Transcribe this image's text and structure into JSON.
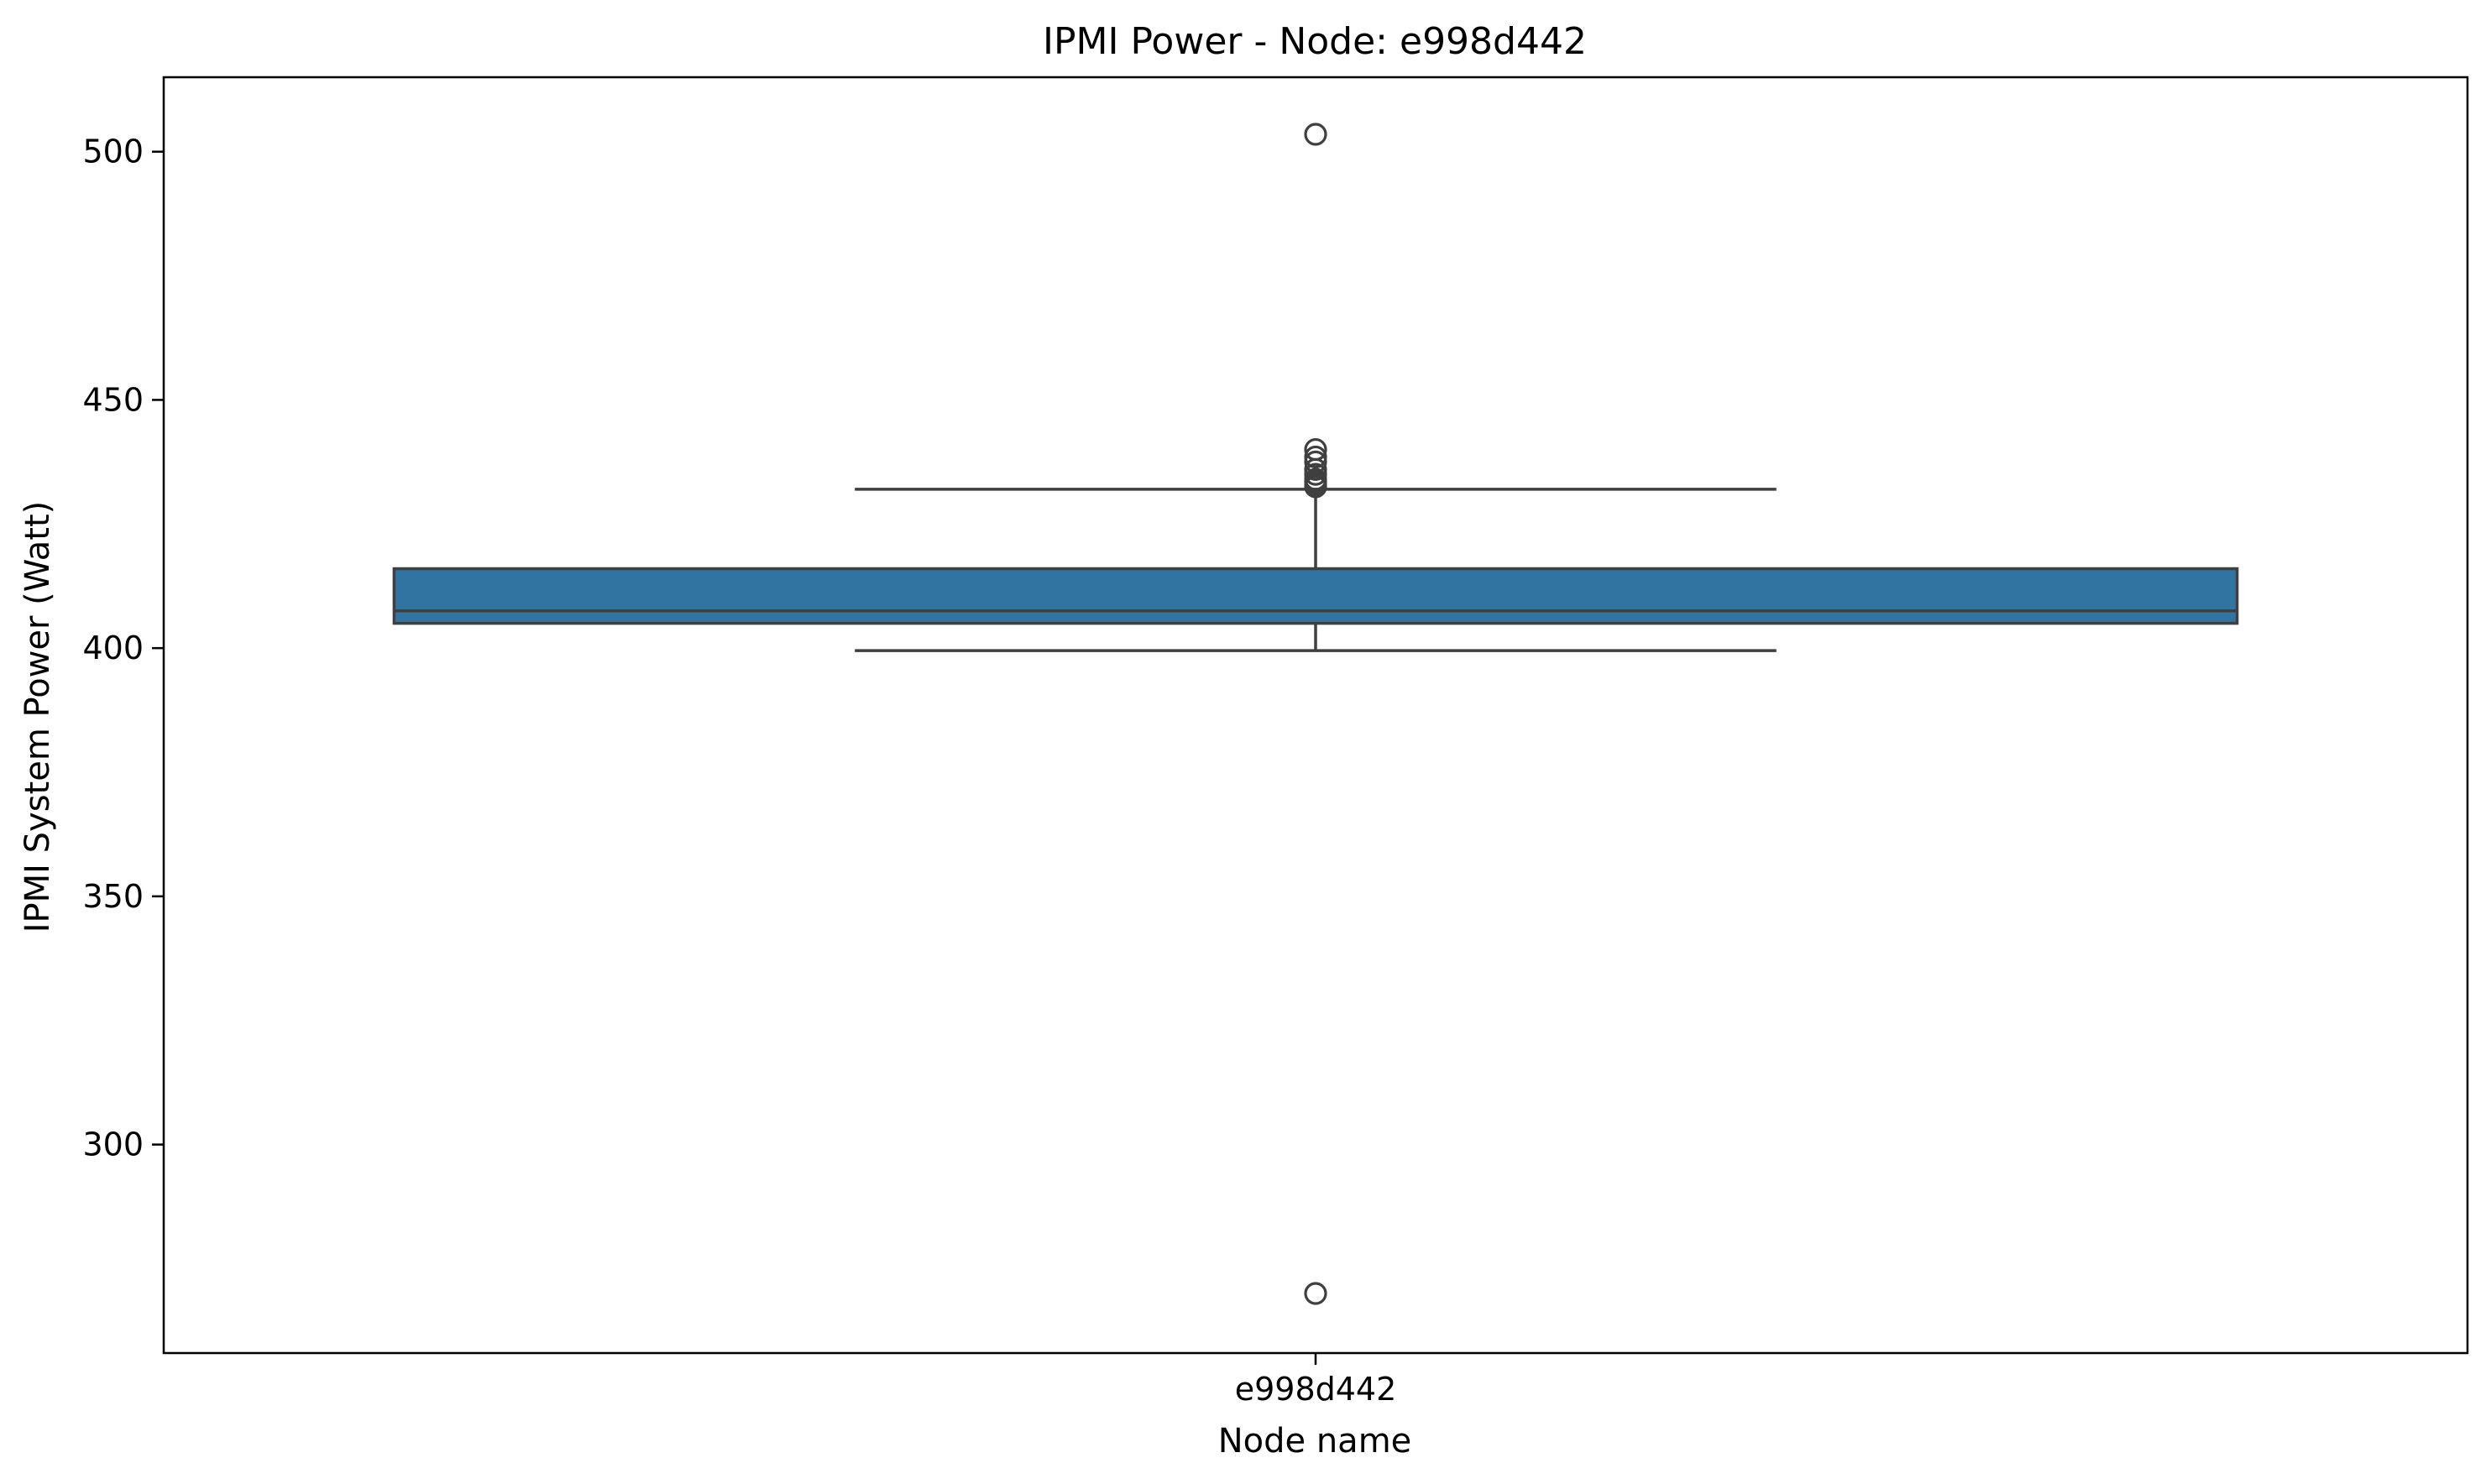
{
  "chart_data": {
    "type": "box",
    "title": "IPMI Power - Node: e998d442",
    "xlabel": "Node name",
    "ylabel": "IPMI System Power (Watt)",
    "ylim": [
      258,
      515
    ],
    "yticks": [
      300,
      350,
      400,
      450,
      500
    ],
    "categories": [
      "e998d442"
    ],
    "boxes": [
      {
        "category": "e998d442",
        "whisker_low": 399.5,
        "q1": 405,
        "median": 407.5,
        "q3": 416,
        "whisker_high": 432,
        "outliers": [
          270,
          432.5,
          433,
          433.5,
          434,
          435,
          436,
          437.5,
          438.5,
          440,
          503.5
        ]
      }
    ],
    "grid": false,
    "colors": {
      "box_fill": "#3274a1",
      "box_edge": "#3f3f3f",
      "axes": "#000000"
    }
  }
}
